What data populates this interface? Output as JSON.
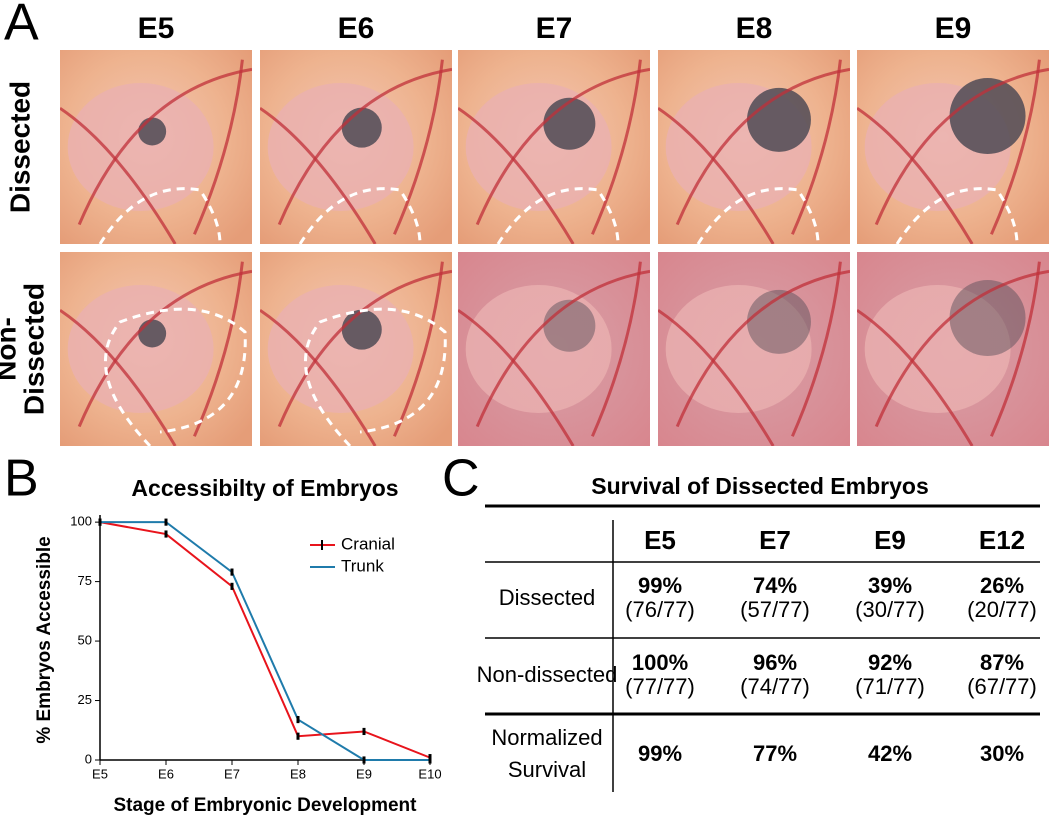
{
  "panel_labels": [
    "A",
    "B",
    "C"
  ],
  "panel_a": {
    "columns": [
      "E5",
      "E6",
      "E7",
      "E8",
      "E9"
    ],
    "rows": [
      [
        "Dissected"
      ],
      [
        "Non-",
        "Dissected"
      ]
    ]
  },
  "chart_data": {
    "type": "line",
    "title": "Accessibilty of Embryos",
    "x_label": "Stage of Embryonic Development",
    "y_label": "% Embryos Accessible",
    "categories": [
      "E5",
      "E6",
      "E7",
      "E8",
      "E9",
      "E10"
    ],
    "series": [
      {
        "name": "Cranial",
        "color": "#e8141c",
        "values": [
          100,
          95,
          73,
          10,
          12,
          1
        ],
        "errors": [
          1.5,
          1.5,
          1.5,
          1.5,
          1.5,
          1.5
        ]
      },
      {
        "name": "Trunk",
        "color": "#1f7bab",
        "values": [
          100,
          100,
          79,
          17,
          0,
          0
        ],
        "errors": [
          1.5,
          1.5,
          1.5,
          1.5,
          1.5,
          1.5
        ]
      }
    ],
    "ylim": [
      0,
      103
    ],
    "yticks": [
      0,
      25,
      50,
      75,
      100
    ],
    "legend": "upper right"
  },
  "table": {
    "title": "Survival of Dissected Embryos",
    "columns": [
      "E5",
      "E7",
      "E9",
      "E12"
    ],
    "rows": [
      {
        "label": [
          "Dissected"
        ],
        "cells": [
          [
            "99%",
            "(76/77)"
          ],
          [
            "74%",
            "(57/77)"
          ],
          [
            "39%",
            "(30/77)"
          ],
          [
            "26%",
            "(20/77)"
          ]
        ]
      },
      {
        "label": [
          "Non-dissected"
        ],
        "cells": [
          [
            "100%",
            "(77/77)"
          ],
          [
            "96%",
            "(74/77)"
          ],
          [
            "92%",
            "(71/77)"
          ],
          [
            "87%",
            "(67/77)"
          ]
        ]
      },
      {
        "label": [
          "Normalized",
          "Survival"
        ],
        "cells": [
          [
            "99%"
          ],
          [
            "77%"
          ],
          [
            "42%"
          ],
          [
            "30%"
          ]
        ]
      }
    ]
  }
}
